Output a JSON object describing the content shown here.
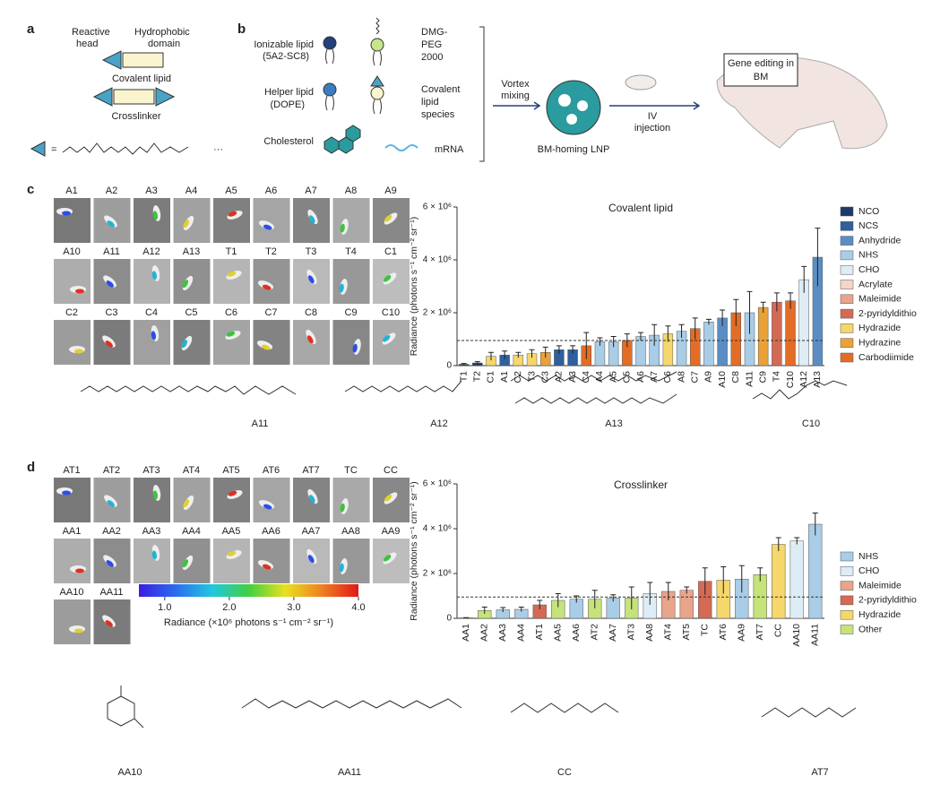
{
  "panel_a": {
    "label": "a",
    "reactive_head": [
      "Reactive",
      "head"
    ],
    "hydrophobic_domain": [
      "Hydrophobic",
      "domain"
    ],
    "covalent_lipid": "Covalent lipid",
    "crosslinker": "Crosslinker",
    "equals": "=",
    "ellipsis": "···"
  },
  "panel_b": {
    "label": "b",
    "ionizable": [
      "Ionizable lipid",
      "(5A2-SC8)"
    ],
    "helper": [
      "Helper lipid",
      "(DOPE)"
    ],
    "cholesterol": "Cholesterol",
    "peg": [
      "DMG-",
      "PEG",
      "2000"
    ],
    "covalent": [
      "Covalent",
      "lipid",
      "species"
    ],
    "mrna": "mRNA",
    "vortex": [
      "Vortex",
      "mixing"
    ],
    "lnp": "BM-homing LNP",
    "iv": [
      "IV",
      "injection"
    ],
    "editing": [
      "Gene editing in",
      "BM"
    ]
  },
  "panel_c": {
    "label": "c",
    "images": [
      "A1",
      "A2",
      "A3",
      "A4",
      "A5",
      "A6",
      "A7",
      "A8",
      "A9",
      "A10",
      "A11",
      "A12",
      "A13",
      "T1",
      "T2",
      "T3",
      "T4",
      "C1",
      "C2",
      "C3",
      "C4",
      "C5",
      "C6",
      "C7",
      "C8",
      "C9",
      "C10"
    ]
  },
  "structures_c": [
    "A11",
    "A12",
    "A13",
    "C10"
  ],
  "panel_d": {
    "label": "d",
    "images": [
      "AT1",
      "AT2",
      "AT3",
      "AT4",
      "AT5",
      "AT6",
      "AT7",
      "TC",
      "CC",
      "AA1",
      "AA2",
      "AA3",
      "AA4",
      "AA5",
      "AA6",
      "AA7",
      "AA8",
      "AA9",
      "AA10",
      "AA11"
    ],
    "colorbar": {
      "lim": [
        0.6,
        4.0
      ],
      "ticks": [
        {
          "value": 1,
          "label": "1.0"
        },
        {
          "value": 2,
          "label": "2.0"
        },
        {
          "value": 3,
          "label": "3.0"
        },
        {
          "value": 4,
          "label": "4.0"
        }
      ],
      "label": "Radiance (×10⁶ photons s⁻¹ cm⁻² sr⁻¹)"
    }
  },
  "structures_d": [
    "AA10",
    "AA11",
    "CC",
    "AT7"
  ],
  "chart_data": [
    {
      "type": "bar",
      "title": "Covalent lipid",
      "ylabel": "Radiance (photons s⁻¹ cm⁻² sr⁻¹)",
      "categories": [
        "T1",
        "T2",
        "C1",
        "A1",
        "C2",
        "T3",
        "C3",
        "A2",
        "A3",
        "C4",
        "A4",
        "A5",
        "C5",
        "A6",
        "A7",
        "C6",
        "A8",
        "C7",
        "A9",
        "A10",
        "C8",
        "A11",
        "C9",
        "T4",
        "C10",
        "A12",
        "A13"
      ],
      "values": [
        50000,
        100000,
        350000,
        400000,
        400000,
        450000,
        500000,
        600000,
        600000,
        750000,
        900000,
        900000,
        950000,
        1100000,
        1150000,
        1200000,
        1300000,
        1400000,
        1650000,
        1800000,
        2000000,
        2000000,
        2200000,
        2400000,
        2450000,
        3250000,
        4100000
      ],
      "errors": [
        30000,
        50000,
        150000,
        150000,
        100000,
        150000,
        200000,
        150000,
        150000,
        500000,
        150000,
        200000,
        250000,
        150000,
        400000,
        300000,
        250000,
        400000,
        100000,
        300000,
        500000,
        800000,
        200000,
        350000,
        300000,
        500000,
        1100000
      ],
      "colors": [
        "#1f3a68",
        "#1f3a68",
        "#f5d76b",
        "#2f5f9e",
        "#f5d76b",
        "#f5d76b",
        "#eaa238",
        "#2f5f9e",
        "#2f5f9e",
        "#e46d26",
        "#a9cde6",
        "#a9cde6",
        "#e46d26",
        "#a9cde6",
        "#a9cde6",
        "#f5d76b",
        "#a9cde6",
        "#e46d26",
        "#a9cde6",
        "#5b8dc4",
        "#e46d26",
        "#a9cde6",
        "#eaa238",
        "#d46a53",
        "#e46d26",
        "#deedf5",
        "#5b8dc4"
      ],
      "reference_line": 950000,
      "ylim": [
        0,
        6000000
      ],
      "yticks": [
        0,
        {
          "value": 2000000,
          "label": "2 × 10⁶"
        },
        {
          "value": 4000000,
          "label": "4 × 10⁶"
        },
        {
          "value": 6000000,
          "label": "6 × 10⁶"
        }
      ],
      "legend_position": "right",
      "legend": [
        {
          "name": "NCO",
          "color": "#1f3a68"
        },
        {
          "name": "NCS",
          "color": "#2f5f9e"
        },
        {
          "name": "Anhydride",
          "color": "#5b8dc4"
        },
        {
          "name": "NHS",
          "color": "#a9cde6"
        },
        {
          "name": "CHO",
          "color": "#deedf5"
        },
        {
          "name": "Acrylate",
          "color": "#f5d5c8"
        },
        {
          "name": "Maleimide",
          "color": "#e8a58c"
        },
        {
          "name": "2-pyridyldithio",
          "color": "#d46a53"
        },
        {
          "name": "Hydrazide",
          "color": "#f5d76b"
        },
        {
          "name": "Hydrazine",
          "color": "#eaa238"
        },
        {
          "name": "Carbodiimide",
          "color": "#e46d26"
        }
      ]
    },
    {
      "type": "bar",
      "title": "Crosslinker",
      "ylabel": "Radiance (photons s⁻¹ cm⁻² sr⁻¹)",
      "categories": [
        "AA1",
        "AA2",
        "AA3",
        "AA4",
        "AT1",
        "AA5",
        "AA6",
        "AT2",
        "AA7",
        "AT3",
        "AA8",
        "AT4",
        "AT5",
        "TC",
        "AT6",
        "AA9",
        "AT7",
        "CC",
        "AA10",
        "AA11"
      ],
      "values": [
        20000,
        350000,
        380000,
        400000,
        600000,
        800000,
        850000,
        850000,
        900000,
        900000,
        1100000,
        1200000,
        1250000,
        1650000,
        1700000,
        1750000,
        1950000,
        3300000,
        3450000,
        4200000
      ],
      "errors": [
        10000,
        150000,
        100000,
        100000,
        200000,
        300000,
        150000,
        400000,
        150000,
        500000,
        500000,
        400000,
        150000,
        600000,
        600000,
        600000,
        300000,
        300000,
        150000,
        500000
      ],
      "colors": [
        "#a9cde6",
        "#c5e37a",
        "#a9cde6",
        "#a9cde6",
        "#d46a53",
        "#c5e37a",
        "#a9cde6",
        "#c5e37a",
        "#a9cde6",
        "#c5e37a",
        "#deedf5",
        "#e8a58c",
        "#e8a58c",
        "#d46a53",
        "#f5d76b",
        "#a9cde6",
        "#c5e37a",
        "#f5d76b",
        "#deedf5",
        "#a9cde6"
      ],
      "reference_line": 950000,
      "ylim": [
        0,
        6000000
      ],
      "yticks": [
        0,
        {
          "value": 2000000,
          "label": "2 × 10⁶"
        },
        {
          "value": 4000000,
          "label": "4 × 10⁶"
        },
        {
          "value": 6000000,
          "label": "6 × 10⁶"
        }
      ],
      "legend_position": "right",
      "legend": [
        {
          "name": "NHS",
          "color": "#a9cde6"
        },
        {
          "name": "CHO",
          "color": "#deedf5"
        },
        {
          "name": "Maleimide",
          "color": "#e8a58c"
        },
        {
          "name": "2-pyridyldithio",
          "color": "#d46a53"
        },
        {
          "name": "Hydrazide",
          "color": "#f5d76b"
        },
        {
          "name": "Other",
          "color": "#c5e37a"
        }
      ]
    }
  ]
}
